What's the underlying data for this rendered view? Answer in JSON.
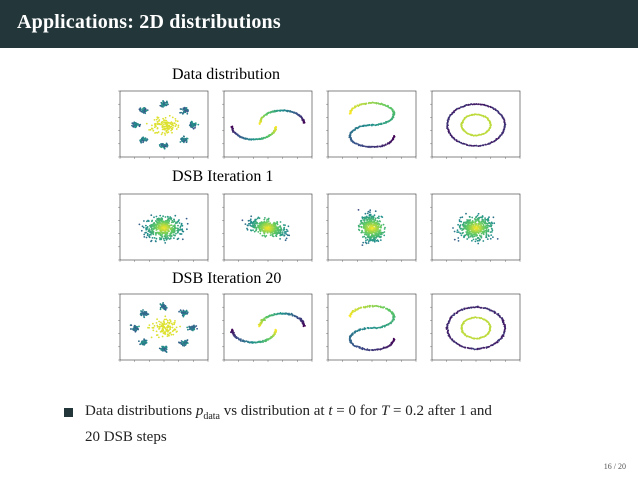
{
  "header": {
    "title": "Applications: 2D distributions"
  },
  "figure": {
    "rows": [
      {
        "title": "Data distribution"
      },
      {
        "title": "DSB Iteration 1"
      },
      {
        "title": "DSB Iteration 20"
      }
    ],
    "colors": {
      "dark": "#440154",
      "mid": "#21918c",
      "light": "#fde725"
    }
  },
  "bullet": {
    "text_1": "Data distributions ",
    "p": "p",
    "p_sub": "data",
    "text_2": " vs distribution at ",
    "t_expr": "t",
    "eq_1": " = 0 for ",
    "T_expr": "T",
    "eq_2": " = 0.2 after 1 and",
    "line2": "20 DSB steps"
  },
  "footer": {
    "page": "16 / 20"
  }
}
